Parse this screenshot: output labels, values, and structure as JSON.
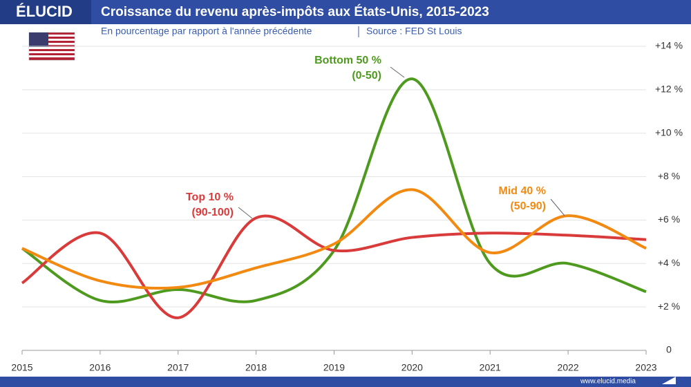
{
  "brand": "ÉLUCID",
  "footer": "www.elucid.media",
  "chart_data": {
    "type": "line",
    "title": "Croissance du revenu après-impôts aux États-Unis, 2015-2023",
    "subtitle": "En pourcentage par rapport à l'année précédente",
    "source": "Source : FED St Louis",
    "x": [
      2015,
      2016,
      2017,
      2018,
      2019,
      2020,
      2021,
      2022,
      2023
    ],
    "xlim": [
      2015,
      2023
    ],
    "xticks": [
      2015,
      2016,
      2017,
      2018,
      2019,
      2020,
      2021,
      2022,
      2023
    ],
    "ylim": [
      0,
      14
    ],
    "yticks": [
      0,
      {
        "value": 2,
        "label": "+2 %"
      },
      {
        "value": 4,
        "label": "+4 %"
      },
      {
        "value": 6,
        "label": "+6 %"
      },
      {
        "value": 8,
        "label": "+8 %"
      },
      {
        "value": 10,
        "label": "+10 %"
      },
      {
        "value": 12,
        "label": "+12 %"
      },
      {
        "value": 14,
        "label": "+14 %"
      }
    ],
    "grid": true,
    "series": [
      {
        "name": "Bottom 50 %",
        "range": "(0-50)",
        "color": "#4e9a1f",
        "values": [
          4.7,
          2.3,
          2.8,
          2.3,
          4.6,
          12.5,
          4.0,
          4.0,
          2.7
        ]
      },
      {
        "name": "Top 10 %",
        "range": "(90-100)",
        "color": "#d93a3a",
        "values": [
          3.1,
          5.4,
          1.5,
          6.1,
          4.6,
          5.2,
          5.4,
          5.3,
          5.1
        ]
      },
      {
        "name": "Mid 40 %",
        "range": "(50-90)",
        "color": "#f28a12",
        "values": [
          4.7,
          3.2,
          2.9,
          3.8,
          4.9,
          7.4,
          4.5,
          6.2,
          4.7
        ]
      }
    ]
  }
}
